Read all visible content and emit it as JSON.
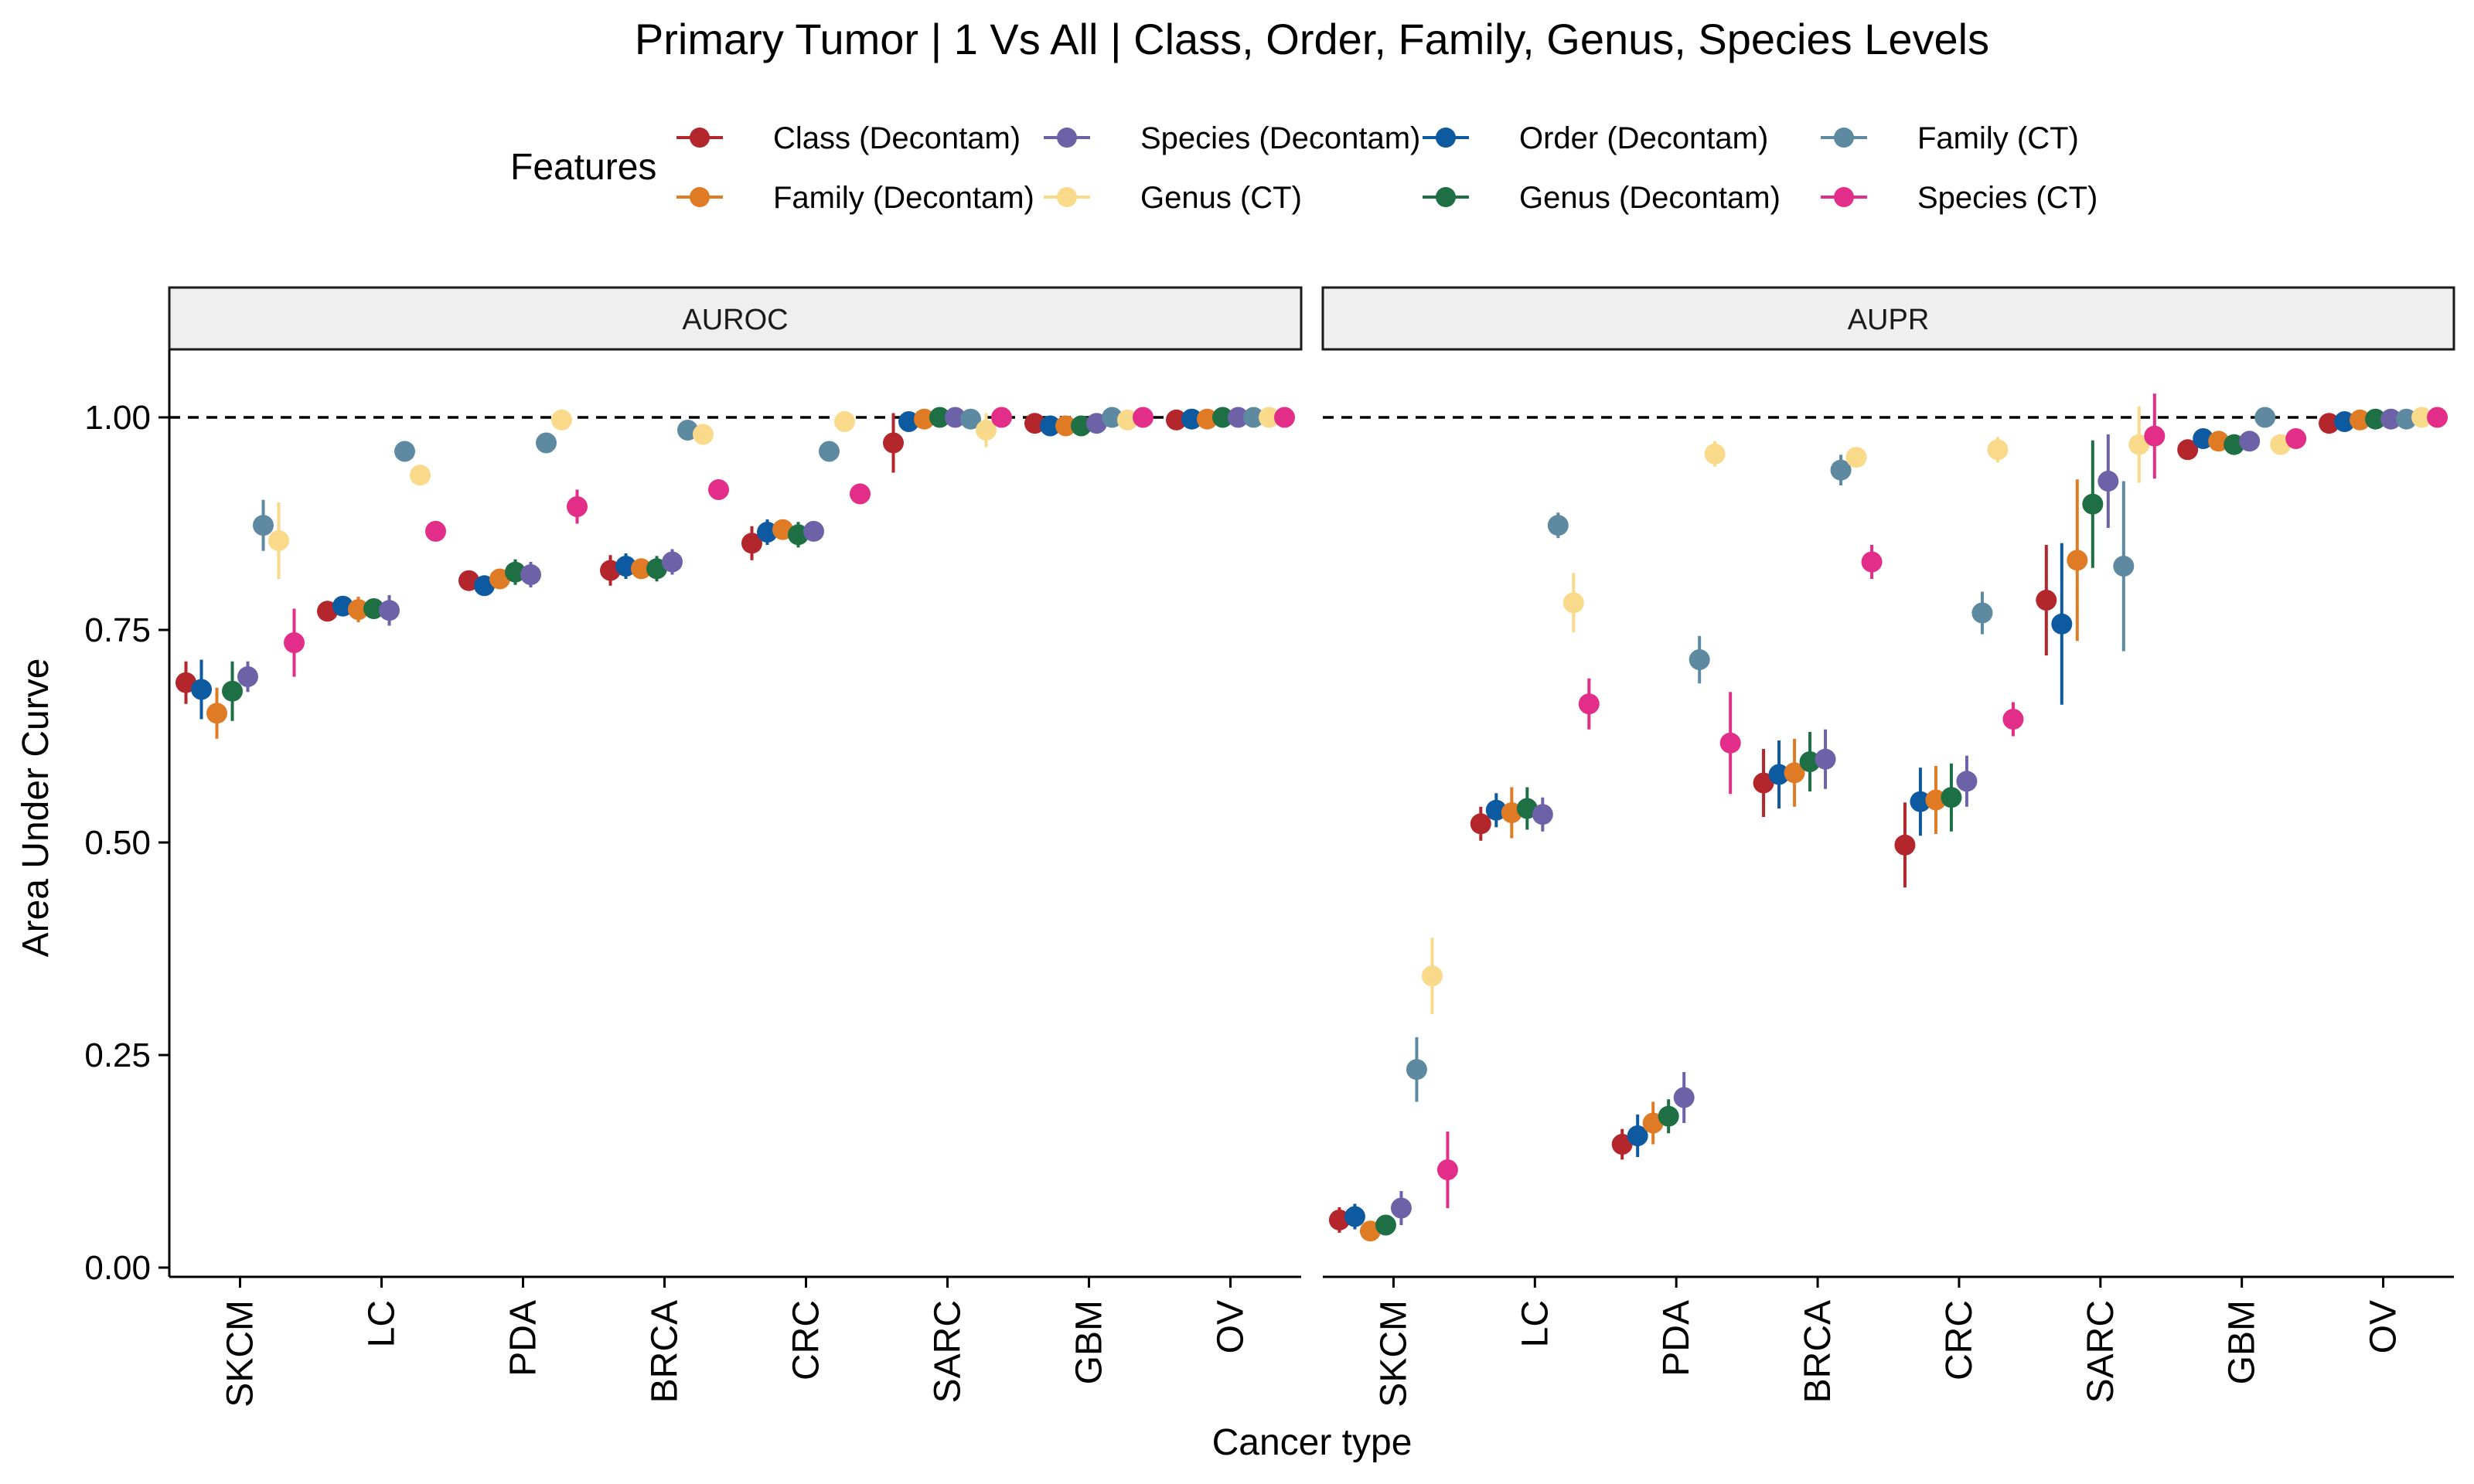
{
  "chart_data": {
    "type": "scatter",
    "title": "Primary Tumor | 1 Vs All | Class, Order, Family, Genus, Species Levels",
    "xlabel": "Cancer type",
    "ylabel": "Area Under Curve",
    "ylim": [
      0,
      1.07
    ],
    "yticks": [
      "0.00",
      "0.25",
      "0.50",
      "0.75",
      "1.00"
    ],
    "reference_line": 1.0,
    "legend_title": "Features",
    "legend_position": "top",
    "categories": [
      "SKCM",
      "LC",
      "PDA",
      "BRCA",
      "CRC",
      "SARC",
      "GBM",
      "OV"
    ],
    "series": [
      {
        "name": "Class (Decontam)",
        "color": "#B2262C"
      },
      {
        "name": "Order (Decontam)",
        "color": "#0D5AA0"
      },
      {
        "name": "Family (Decontam)",
        "color": "#E07B25"
      },
      {
        "name": "Genus (Decontam)",
        "color": "#1E7044"
      },
      {
        "name": "Species (Decontam)",
        "color": "#6D62A8"
      },
      {
        "name": "Family (CT)",
        "color": "#5D8AA0"
      },
      {
        "name": "Genus (CT)",
        "color": "#F9D98A"
      },
      {
        "name": "Species (CT)",
        "color": "#E22E88"
      }
    ],
    "legend_order": [
      0,
      2,
      4,
      6,
      1,
      3,
      5,
      7
    ],
    "panels": [
      {
        "name": "AUROC",
        "values": [
          [
            0.688,
            0.772,
            0.808,
            0.82,
            0.852,
            0.97,
            0.993,
            0.997
          ],
          [
            0.68,
            0.778,
            0.802,
            0.825,
            0.865,
            0.995,
            0.99,
            0.998
          ],
          [
            0.652,
            0.774,
            0.81,
            0.822,
            0.868,
            0.998,
            0.99,
            0.998
          ],
          [
            0.678,
            0.775,
            0.818,
            0.822,
            0.862,
            1.0,
            0.99,
            1.0
          ],
          [
            0.695,
            0.773,
            0.815,
            0.83,
            0.866,
            1.0,
            0.993,
            1.0
          ],
          [
            0.873,
            0.96,
            0.97,
            0.985,
            0.96,
            0.998,
            1.0,
            1.0
          ],
          [
            0.855,
            0.932,
            0.997,
            0.98,
            0.995,
            0.985,
            0.997,
            1.0
          ],
          [
            0.735,
            0.866,
            0.895,
            0.915,
            0.91,
            1.0,
            1.0,
            1.0
          ]
        ],
        "errors": [
          [
            0.025,
            0.01,
            0.01,
            0.018,
            0.02,
            0.035,
            0.005,
            0.005
          ],
          [
            0.035,
            0.01,
            0.01,
            0.015,
            0.015,
            0.005,
            0.005,
            0.005
          ],
          [
            0.03,
            0.015,
            0.01,
            0.012,
            0.012,
            0.005,
            0.005,
            0.005
          ],
          [
            0.035,
            0.012,
            0.015,
            0.015,
            0.015,
            0.005,
            0.005,
            0.005
          ],
          [
            0.018,
            0.018,
            0.015,
            0.015,
            0.01,
            0.005,
            0.005,
            0.005
          ],
          [
            0.03,
            0.005,
            0.005,
            0.005,
            0.005,
            0.005,
            0.005,
            0.005
          ],
          [
            0.045,
            0.005,
            0.005,
            0.005,
            0.005,
            0.02,
            0.005,
            0.005
          ],
          [
            0.04,
            0.005,
            0.02,
            0.005,
            0.005,
            0.005,
            0.005,
            0.005
          ]
        ]
      },
      {
        "name": "AUPR",
        "values": [
          [
            0.056,
            0.522,
            0.145,
            0.57,
            0.497,
            0.785,
            0.962,
            0.993
          ],
          [
            0.06,
            0.538,
            0.155,
            0.58,
            0.548,
            0.757,
            0.975,
            0.995
          ],
          [
            0.043,
            0.535,
            0.17,
            0.582,
            0.55,
            0.832,
            0.972,
            0.997
          ],
          [
            0.05,
            0.54,
            0.178,
            0.595,
            0.553,
            0.898,
            0.968,
            0.998
          ],
          [
            0.07,
            0.533,
            0.2,
            0.598,
            0.572,
            0.925,
            0.972,
            0.998
          ],
          [
            0.233,
            0.873,
            0.715,
            0.938,
            0.77,
            0.825,
            1.0,
            0.998
          ],
          [
            0.343,
            0.782,
            0.957,
            0.953,
            0.962,
            0.968,
            0.968,
            1.0
          ],
          [
            0.115,
            0.663,
            0.617,
            0.83,
            0.645,
            0.978,
            0.975,
            1.0
          ]
        ],
        "errors": [
          [
            0.015,
            0.02,
            0.018,
            0.04,
            0.05,
            0.065,
            0.01,
            0.005
          ],
          [
            0.015,
            0.02,
            0.025,
            0.04,
            0.04,
            0.095,
            0.01,
            0.005
          ],
          [
            0.01,
            0.03,
            0.025,
            0.04,
            0.04,
            0.095,
            0.01,
            0.005
          ],
          [
            0.01,
            0.025,
            0.02,
            0.035,
            0.04,
            0.075,
            0.01,
            0.005
          ],
          [
            0.02,
            0.02,
            0.03,
            0.035,
            0.03,
            0.055,
            0.01,
            0.005
          ],
          [
            0.038,
            0.015,
            0.028,
            0.018,
            0.025,
            0.1,
            0.005,
            0.005
          ],
          [
            0.045,
            0.035,
            0.015,
            0.01,
            0.015,
            0.045,
            0.01,
            0.005
          ],
          [
            0.045,
            0.03,
            0.06,
            0.02,
            0.02,
            0.05,
            0.005,
            0.005
          ]
        ]
      }
    ]
  }
}
